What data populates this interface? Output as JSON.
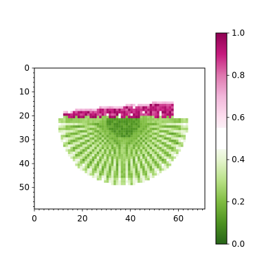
{
  "chart_data": {
    "type": "heatmap",
    "colormap": "PiYG_r",
    "x_range": [
      0,
      71
    ],
    "y_range": [
      0,
      59
    ],
    "y_inverted": true,
    "x_ticks": [
      0,
      20,
      40,
      60
    ],
    "y_ticks": [
      0,
      10,
      20,
      30,
      40,
      50
    ],
    "x_tick_labels": [
      "0",
      "20",
      "40",
      "60"
    ],
    "y_tick_labels": [
      "0",
      "10",
      "20",
      "30",
      "40",
      "50"
    ],
    "colorbar": {
      "range": [
        0.0,
        1.0
      ],
      "ticks": [
        0.0,
        0.2,
        0.4,
        0.6,
        0.8,
        1.0
      ],
      "tick_labels": [
        "0.0",
        "0.2",
        "0.4",
        "0.6",
        "0.8",
        "1.0"
      ],
      "blank_band": [
        0.45,
        0.55
      ]
    },
    "shape": {
      "type": "half-disc fan",
      "center": [
        37,
        22
      ],
      "radius": 27,
      "rim_extent": [
        10,
        64
      ],
      "ray_count": 24
    },
    "bands": [
      {
        "name": "green fan region",
        "value_range": [
          0.05,
          0.35
        ]
      },
      {
        "name": "magenta top band",
        "value_range": [
          0.8,
          1.0
        ]
      },
      {
        "name": "pale fringe",
        "value_range": [
          0.6,
          0.75
        ]
      }
    ]
  }
}
